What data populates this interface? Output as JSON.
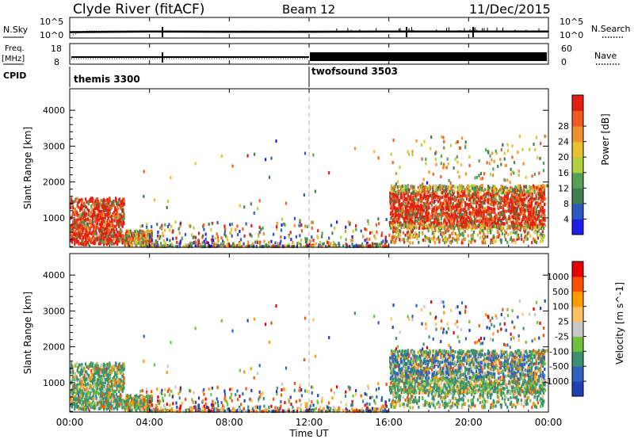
{
  "header": {
    "station": "Clyde River (fitACF)",
    "beam": "Beam 12",
    "date": "11/Dec/2015"
  },
  "colors": {
    "power": [
      "#1e1ee6",
      "#2c5ac0",
      "#3f7f50",
      "#55a055",
      "#b0d040",
      "#e8c030",
      "#f09030",
      "#f05a20",
      "#e02010"
    ],
    "velocity": [
      "#e60000",
      "#ff5000",
      "#ff9a00",
      "#ffc060",
      "#c8c8c8",
      "#70c040",
      "#3c9070",
      "#3060c0",
      "#2040b0"
    ]
  },
  "chart_data": [
    {
      "type": "line",
      "panel": "noise",
      "left_label": "N.Sky",
      "right_label": "N.Search",
      "yticks_left": [
        "10^5",
        "10^0"
      ],
      "yticks_right": [
        "10^5",
        "10^0"
      ],
      "series": [
        {
          "name": "N.Sky",
          "x": [
            "00:00",
            "04:00",
            "08:00",
            "12:00",
            "16:00",
            "20:00",
            "00:00"
          ],
          "y": [
            1.0,
            1.2,
            1.1,
            1.1,
            1.2,
            1.2,
            1.2
          ]
        }
      ]
    },
    {
      "type": "line",
      "panel": "frequency",
      "left_label": "Freq. [MHz]",
      "right_label": "Nave",
      "yticks_left": [
        "18",
        "8"
      ],
      "yticks_right": [
        "60",
        "0"
      ],
      "series": [
        {
          "name": "Freq. [MHz]",
          "x": [
            "00:00",
            "12:00",
            "12:00",
            "00:00"
          ],
          "y": [
            10,
            10,
            12,
            12
          ]
        }
      ]
    },
    {
      "type": "table",
      "panel": "cpid",
      "label": "CPID",
      "segments": [
        {
          "name": "themis 3300",
          "start": "00:00",
          "end": "12:00"
        },
        {
          "name": "twofsound 3503",
          "start": "12:00",
          "end": "00:00"
        }
      ]
    },
    {
      "type": "heatmap",
      "panel": "power",
      "ylabel": "Slant Range [km]",
      "yticks": [
        1000,
        2000,
        3000,
        4000
      ],
      "ylim": [
        180,
        4600
      ],
      "xlim": [
        "00:00",
        "00:00"
      ],
      "colorbar_label": "Power [dB]",
      "colorbar_ticks": [
        "4",
        "8",
        "12",
        "16",
        "20",
        "24",
        "28"
      ],
      "regions": [
        {
          "x": [
            "00:00",
            "02:40"
          ],
          "y": [
            250,
            1600
          ],
          "level": "high"
        },
        {
          "x": [
            "02:40",
            "04:00"
          ],
          "y": [
            200,
            700
          ],
          "level": "medium"
        },
        {
          "x": [
            "04:00",
            "16:00"
          ],
          "y": [
            200,
            500
          ],
          "level": "low"
        },
        {
          "x": [
            "16:00",
            "23:50"
          ],
          "y": [
            700,
            1900
          ],
          "level": "high"
        }
      ]
    },
    {
      "type": "heatmap",
      "panel": "velocity",
      "ylabel": "Slant Range [km]",
      "xlabel": "Time UT",
      "xticks": [
        "00:00",
        "04:00",
        "08:00",
        "12:00",
        "16:00",
        "20:00",
        "00:00"
      ],
      "yticks": [
        1000,
        2000,
        3000,
        4000
      ],
      "ylim": [
        180,
        4600
      ],
      "colorbar_label": "Velocity [m s^-1]",
      "colorbar_ticks": [
        "1000",
        "500",
        "100",
        "25",
        "-25",
        "-100",
        "-500",
        "-1000"
      ],
      "regions": [
        {
          "x": [
            "00:00",
            "02:40"
          ],
          "y": [
            250,
            1600
          ],
          "level": "mixed"
        },
        {
          "x": [
            "16:00",
            "23:50"
          ],
          "y": [
            700,
            1900
          ],
          "level": "mixed"
        }
      ]
    }
  ]
}
